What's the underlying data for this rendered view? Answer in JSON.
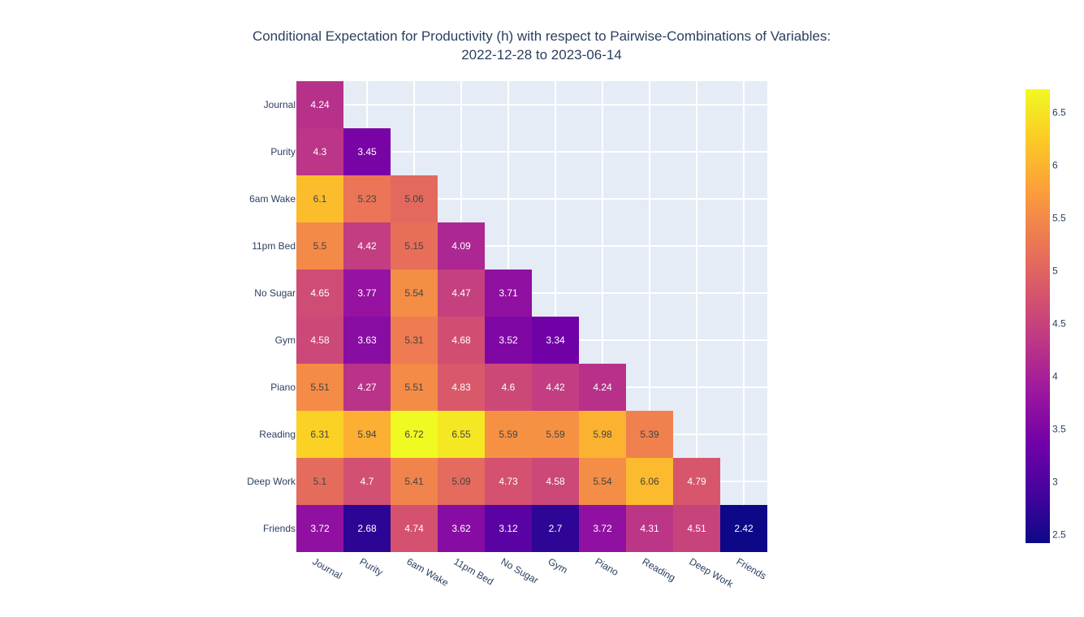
{
  "chart_data": {
    "type": "heatmap",
    "title": "Conditional Expectation for Productivity (h) with respect to Pairwise-Combinations of Variables:",
    "subtitle": "2022-12-28 to 2023-06-14",
    "x": [
      "Journal",
      "Purity",
      "6am Wake",
      "11pm Bed",
      "No Sugar",
      "Gym",
      "Piano",
      "Reading",
      "Deep Work",
      "Friends"
    ],
    "y": [
      "Journal",
      "Purity",
      "6am Wake",
      "11pm Bed",
      "No Sugar",
      "Gym",
      "Piano",
      "Reading",
      "Deep Work",
      "Friends"
    ],
    "z": [
      [
        4.24
      ],
      [
        4.3,
        3.45
      ],
      [
        6.1,
        5.23,
        5.06
      ],
      [
        5.5,
        4.42,
        5.15,
        4.09
      ],
      [
        4.65,
        3.77,
        5.54,
        4.47,
        3.71
      ],
      [
        4.58,
        3.63,
        5.31,
        4.68,
        3.52,
        3.34
      ],
      [
        5.51,
        4.27,
        5.51,
        4.83,
        4.6,
        4.42,
        4.24
      ],
      [
        6.31,
        5.94,
        6.72,
        6.55,
        5.59,
        5.59,
        5.98,
        5.39
      ],
      [
        5.1,
        4.7,
        5.41,
        5.09,
        4.73,
        4.58,
        5.54,
        6.06,
        4.79
      ],
      [
        3.72,
        2.68,
        4.74,
        3.62,
        3.12,
        2.7,
        3.72,
        4.31,
        4.51,
        2.42
      ]
    ],
    "zmin": 2.42,
    "zmax": 6.72,
    "colorscale": "plasma",
    "colorbar_ticks": [
      2.5,
      3,
      3.5,
      4,
      4.5,
      5,
      5.5,
      6,
      6.5
    ],
    "colorbar_tick_labels": [
      "2.5",
      "3",
      "3.5",
      "4",
      "4.5",
      "5",
      "5.5",
      "6",
      "6.5"
    ],
    "grid": true,
    "colors": {
      "plot_bg": "#e5ecf6",
      "grid": "#ffffff",
      "text": "#2a3f5f",
      "plasma": [
        "#0d0887",
        "#46039f",
        "#7201a8",
        "#9c179e",
        "#bd3786",
        "#d8576b",
        "#ed7953",
        "#fb9f3a",
        "#fdca26",
        "#f0f921"
      ]
    }
  }
}
